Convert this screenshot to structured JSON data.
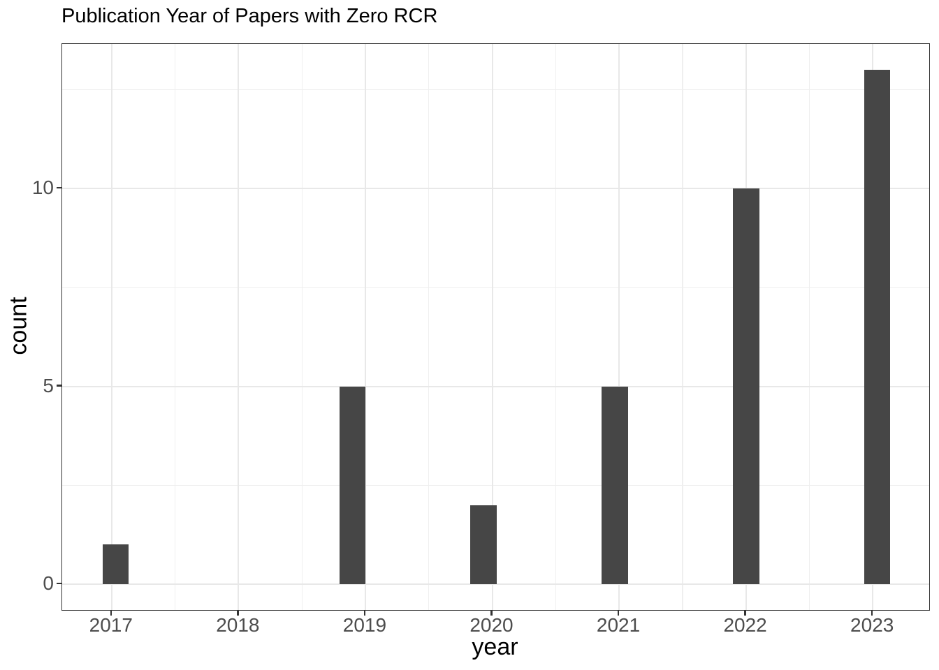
{
  "chart_data": {
    "type": "bar",
    "title": "Publication Year of Papers with Zero RCR",
    "xlabel": "year",
    "ylabel": "count",
    "categories": [
      "2017",
      "2018",
      "2019",
      "2020",
      "2021",
      "2022",
      "2023"
    ],
    "values": [
      1,
      0,
      5,
      2,
      5,
      10,
      13
    ],
    "bars": [
      {
        "label": "2017",
        "value": 1,
        "bin_center": 2017.03
      },
      {
        "label": "2019",
        "value": 5,
        "bin_center": 2018.897
      },
      {
        "label": "2020",
        "value": 2,
        "bin_center": 2019.931
      },
      {
        "label": "2021",
        "value": 5,
        "bin_center": 2020.967
      },
      {
        "label": "2022",
        "value": 10,
        "bin_center": 2022.003
      },
      {
        "label": "2023",
        "value": 13,
        "bin_center": 2023.034
      }
    ],
    "bar_half_width": 0.103,
    "x_tick_labels": [
      "2017",
      "2018",
      "2019",
      "2020",
      "2021",
      "2022",
      "2023"
    ],
    "x_tick_values": [
      2017,
      2018,
      2019,
      2020,
      2021,
      2022,
      2023
    ],
    "y_tick_labels": [
      "0",
      "5",
      "10"
    ],
    "y_tick_values": [
      0,
      5,
      10
    ],
    "x_minor_values": [
      2017.5,
      2018.5,
      2019.5,
      2020.5,
      2021.5,
      2022.5
    ],
    "y_minor_values": [
      2.5,
      7.5,
      12.5
    ],
    "xlim": [
      2016.61,
      2023.445
    ],
    "ylim": [
      -0.65,
      13.65
    ],
    "grid": "major-and-minor",
    "legend": "none",
    "colors": {
      "bar_fill": "#464646",
      "panel_border": "#333333",
      "tick_mark": "#333333",
      "grid_major": "#e8e8e8",
      "grid_minor": "#efefef",
      "axis_text": "#4d4d4d",
      "title_text": "#000000",
      "background": "#ffffff"
    }
  }
}
